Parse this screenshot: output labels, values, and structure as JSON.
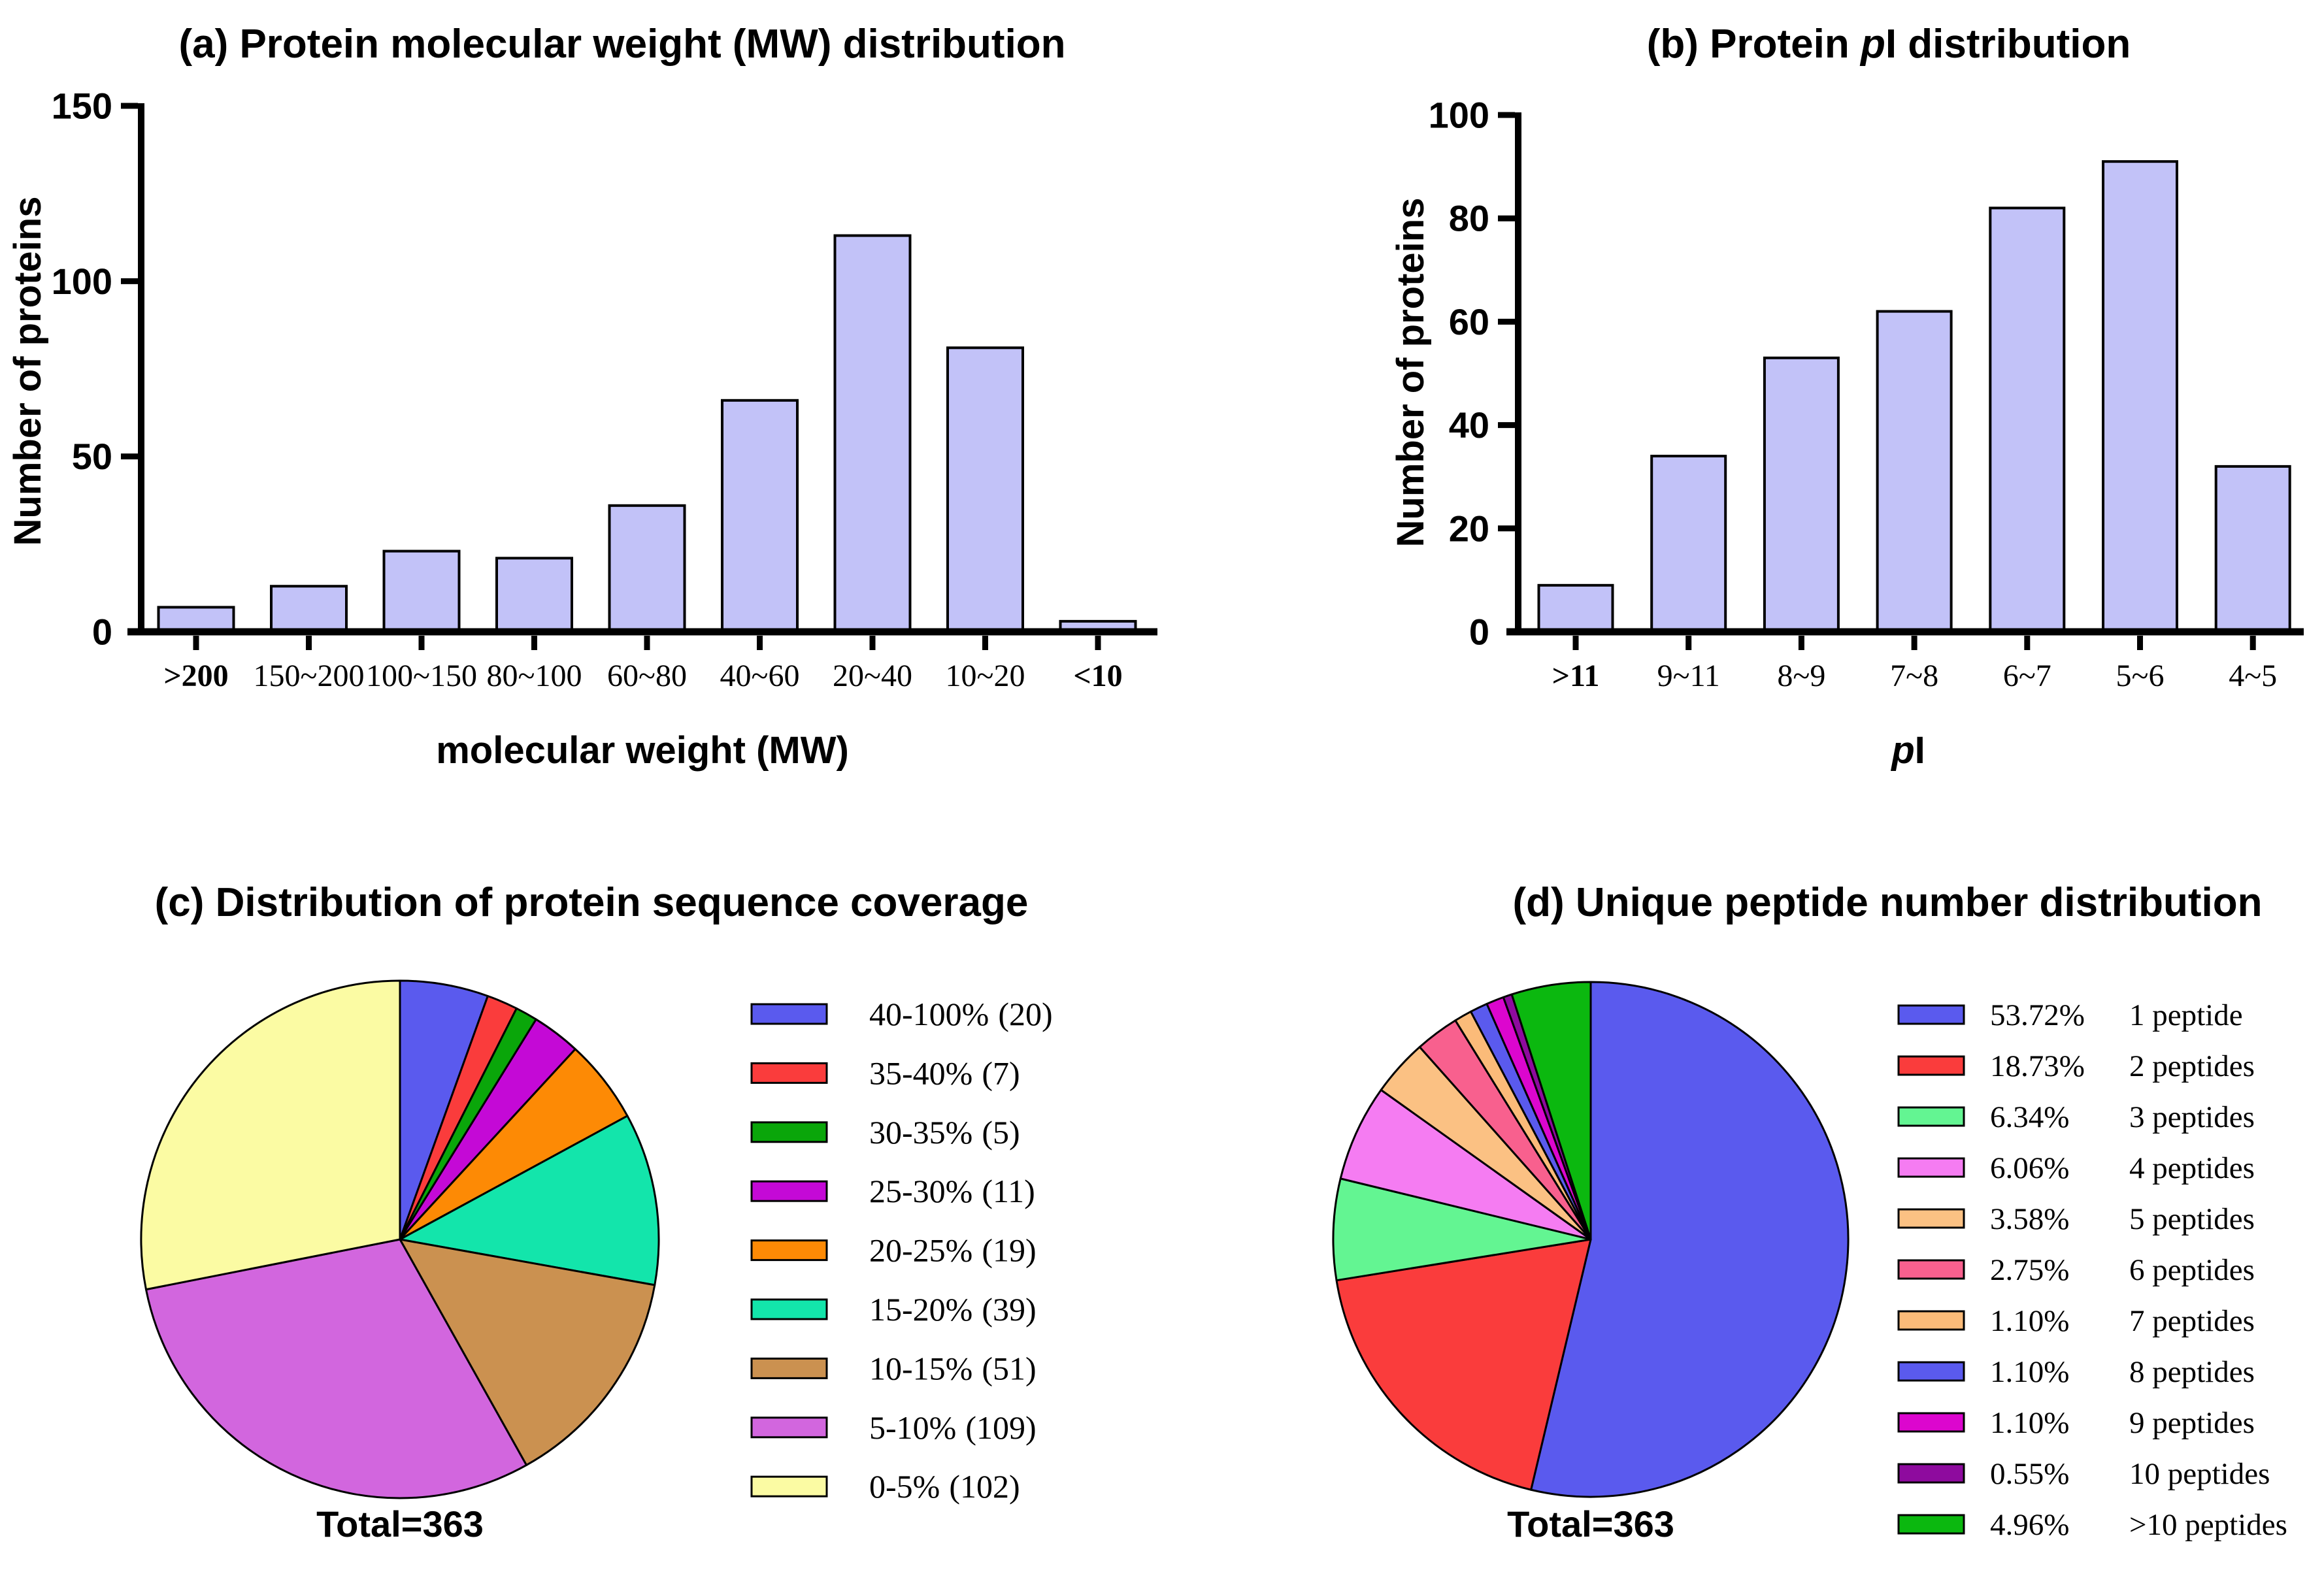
{
  "figure": {
    "background": "#FFFFFF",
    "bar_fill": "#C2C2F8",
    "axis_color": "#000000"
  },
  "chart_data": [
    {
      "id": "a",
      "type": "bar",
      "title": "(a) Protein molecular weight (MW) distribution",
      "ylabel": "Number of proteins",
      "xlabel": "molecular weight (MW)",
      "ylim": [
        0,
        150
      ],
      "yticks": [
        0,
        50,
        100,
        150
      ],
      "grid": false,
      "bar_color": "#C2C2F8",
      "categories": [
        {
          "label": ">200",
          "bold": true
        },
        {
          "label": "150~200",
          "bold": false
        },
        {
          "label": "100~150",
          "bold": false
        },
        {
          "label": "80~100",
          "bold": false
        },
        {
          "label": "60~80",
          "bold": false
        },
        {
          "label": "40~60",
          "bold": false
        },
        {
          "label": "20~40",
          "bold": false
        },
        {
          "label": "10~20",
          "bold": false
        },
        {
          "label": "<10",
          "bold": true
        }
      ],
      "values": [
        7,
        13,
        23,
        21,
        36,
        66,
        113,
        81,
        3
      ]
    },
    {
      "id": "b",
      "type": "bar",
      "title": "(b) Protein pI distribution",
      "title_parts": [
        {
          "t": "(b) Protein ",
          "i": false
        },
        {
          "t": "p",
          "i": true
        },
        {
          "t": "I distribution",
          "i": false
        }
      ],
      "ylabel": "Number of proteins",
      "xlabel": "pI",
      "xlabel_parts": [
        {
          "t": "p",
          "i": true
        },
        {
          "t": "I",
          "i": false
        }
      ],
      "ylim": [
        0,
        100
      ],
      "yticks": [
        0,
        20,
        40,
        60,
        80,
        100
      ],
      "grid": false,
      "bar_color": "#C2C2F8",
      "categories": [
        {
          "label": ">11",
          "bold": true
        },
        {
          "label": "9~11",
          "bold": false
        },
        {
          "label": "8~9",
          "bold": false
        },
        {
          "label": "7~8",
          "bold": false
        },
        {
          "label": "6~7",
          "bold": false
        },
        {
          "label": "5~6",
          "bold": false
        },
        {
          "label": "4~5",
          "bold": false
        }
      ],
      "values": [
        9,
        34,
        53,
        62,
        82,
        91,
        32
      ]
    },
    {
      "id": "c",
      "type": "pie",
      "title": "(c) Distribution of protein sequence coverage",
      "total_label": "Total=363",
      "start_angle_deg": 0,
      "direction": "clockwise",
      "legend_position": "right",
      "slices": [
        {
          "label": "40-100%",
          "count": "(20)",
          "value": 20,
          "color": "#5A5AEE"
        },
        {
          "label": "35-40%",
          "count": "(7)",
          "value": 7,
          "color": "#FA3C3C"
        },
        {
          "label": "30-35%",
          "count": "(5)",
          "value": 5,
          "color": "#0AA60A"
        },
        {
          "label": "25-30%",
          "count": "(11)",
          "value": 11,
          "color": "#C409D6"
        },
        {
          "label": "20-25%",
          "count": "(19)",
          "value": 19,
          "color": "#FD8A05"
        },
        {
          "label": "15-20%",
          "count": "(39)",
          "value": 39,
          "color": "#13E5AB"
        },
        {
          "label": "10-15%",
          "count": "(51)",
          "value": 51,
          "color": "#CB9150"
        },
        {
          "label": "5-10%",
          "count": "(109)",
          "value": 109,
          "color": "#D266DE"
        },
        {
          "label": "0-5%",
          "count": "(102)",
          "value": 102,
          "color": "#FBFBA3"
        }
      ]
    },
    {
      "id": "d",
      "type": "pie",
      "title": "(d) Unique peptide number distribution",
      "total_label": "Total=363",
      "start_angle_deg": 0,
      "direction": "clockwise",
      "legend_position": "right",
      "slices": [
        {
          "percent": "53.72%",
          "label": "1 peptide",
          "value": 53.72,
          "color": "#5A5AEE"
        },
        {
          "percent": "18.73%",
          "label": "2 peptides",
          "value": 18.73,
          "color": "#FA3C3C"
        },
        {
          "percent": "6.34%",
          "label": "3 peptides",
          "value": 6.34,
          "color": "#63F592"
        },
        {
          "percent": "6.06%",
          "label": "4 peptides",
          "value": 6.06,
          "color": "#F57CF2"
        },
        {
          "percent": "3.58%",
          "label": "5 peptides",
          "value": 3.58,
          "color": "#FBC183"
        },
        {
          "percent": "2.75%",
          "label": "6 peptides",
          "value": 2.75,
          "color": "#F8608E"
        },
        {
          "percent": "1.10%",
          "label": "7 peptides",
          "value": 1.1,
          "color": "#FBBB79"
        },
        {
          "percent": "1.10%",
          "label": "8 peptides",
          "value": 1.1,
          "color": "#5A5AEE"
        },
        {
          "percent": "1.10%",
          "label": "9 peptides",
          "value": 1.1,
          "color": "#DC06CE"
        },
        {
          "percent": "0.55%",
          "label": "10 peptides",
          "value": 0.55,
          "color": "#8E0B9E"
        },
        {
          "percent": "4.96%",
          "label": ">10 peptides",
          "value": 4.96,
          "color": "#0BB80F"
        }
      ]
    }
  ]
}
